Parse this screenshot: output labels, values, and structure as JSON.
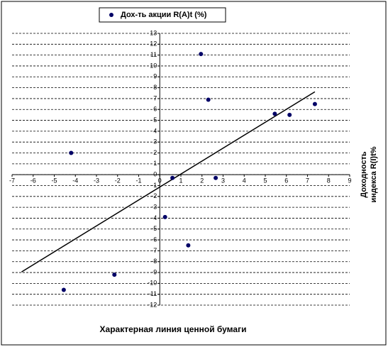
{
  "chart_data": {
    "type": "scatter",
    "legend": "Дох-ть акции R(A)t (%)",
    "x_label": "Характерная линия ценной бумаги",
    "y_label": [
      "Доходность",
      "индекса R(I)t%"
    ],
    "series": [
      {
        "name": "Дох-ть акции R(A)t (%)",
        "color": "#000066",
        "x": [
          -4.2,
          -4.55,
          -2.15,
          0.6,
          0.25,
          1.35,
          1.95,
          2.3,
          2.65,
          5.45,
          6.15,
          7.35
        ],
        "values": [
          2.0,
          -10.6,
          -9.2,
          -0.3,
          -3.9,
          -6.5,
          11.1,
          6.9,
          -0.3,
          5.6,
          5.5,
          6.5
        ]
      }
    ],
    "trendline": true,
    "xlim": [
      -7,
      9
    ],
    "ylim": [
      -12,
      13
    ],
    "xticks": [
      -7,
      -6,
      -5,
      -4,
      -3,
      -2,
      -1,
      0,
      1,
      2,
      3,
      4,
      5,
      6,
      7,
      8,
      9
    ],
    "yticks": [
      -12,
      -11,
      -10,
      -9,
      -8,
      -7,
      -6,
      -5,
      -4,
      -3,
      -2,
      -1,
      0,
      1,
      2,
      3,
      4,
      5,
      6,
      7,
      8,
      9,
      10,
      11,
      12,
      13
    ],
    "grid": true
  }
}
